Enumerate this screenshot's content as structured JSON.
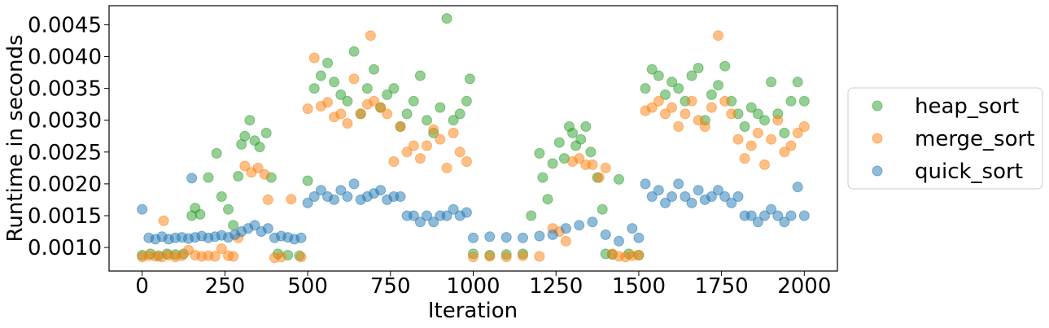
{
  "chart_data": {
    "type": "scatter",
    "xlabel": "Iteration",
    "ylabel": "Runtime in seconds",
    "xlim": [
      -100,
      2100
    ],
    "ylim": [
      0.00063,
      0.0048
    ],
    "xticks": [
      0,
      250,
      500,
      750,
      1000,
      1250,
      1500,
      1750,
      2000
    ],
    "xtick_labels": [
      "0",
      "250",
      "500",
      "750",
      "1000",
      "1250",
      "1500",
      "1750",
      "2000"
    ],
    "yticks": [
      0.001,
      0.0015,
      0.002,
      0.0025,
      0.003,
      0.0035,
      0.004,
      0.0045
    ],
    "ytick_labels": [
      "0.0010",
      "0.0015",
      "0.0020",
      "0.0025",
      "0.0030",
      "0.0035",
      "0.0040",
      "0.0045"
    ],
    "grid": false,
    "legend_position": "right, outside plot",
    "point_alpha": 0.5,
    "series": [
      {
        "name": "heap_sort",
        "color": "#2ca02c",
        "x": [
          0,
          25,
          50,
          75,
          100,
          125,
          150,
          160,
          175,
          200,
          225,
          240,
          260,
          275,
          290,
          300,
          310,
          325,
          340,
          355,
          375,
          390,
          410,
          440,
          475,
          500,
          520,
          540,
          560,
          580,
          600,
          620,
          640,
          660,
          680,
          700,
          720,
          740,
          760,
          780,
          800,
          820,
          840,
          860,
          880,
          900,
          920,
          940,
          960,
          980,
          990,
          1000,
          1050,
          1100,
          1150,
          1175,
          1200,
          1210,
          1225,
          1240,
          1260,
          1275,
          1290,
          1300,
          1310,
          1325,
          1340,
          1355,
          1375,
          1390,
          1400,
          1420,
          1440,
          1470,
          1500,
          1520,
          1540,
          1560,
          1580,
          1600,
          1620,
          1640,
          1660,
          1680,
          1700,
          1720,
          1740,
          1760,
          1780,
          1800,
          1820,
          1840,
          1860,
          1880,
          1900,
          1920,
          1940,
          1960,
          1980,
          2000
        ],
        "y": [
          0.00088,
          0.0009,
          0.00087,
          0.0009,
          0.00089,
          0.0009,
          0.0015,
          0.00162,
          0.00152,
          0.0021,
          0.00248,
          0.0018,
          0.0016,
          0.00135,
          0.00212,
          0.00262,
          0.00275,
          0.003,
          0.00268,
          0.00258,
          0.0028,
          0.0021,
          0.0009,
          0.00088,
          0.00087,
          0.00205,
          0.0035,
          0.0037,
          0.0039,
          0.0036,
          0.0034,
          0.0033,
          0.00408,
          0.0031,
          0.0035,
          0.0038,
          0.0032,
          0.0034,
          0.0035,
          0.0029,
          0.0031,
          0.0033,
          0.0037,
          0.003,
          0.0028,
          0.0032,
          0.0046,
          0.003,
          0.0031,
          0.0033,
          0.00365,
          0.0009,
          0.00088,
          0.00089,
          0.0009,
          0.0015,
          0.00248,
          0.0021,
          0.00176,
          0.00232,
          0.00265,
          0.0024,
          0.0029,
          0.0028,
          0.0026,
          0.0027,
          0.0029,
          0.0025,
          0.0021,
          0.0016,
          0.0009,
          0.00089,
          0.00207,
          0.0009,
          0.00088,
          0.0035,
          0.0038,
          0.0037,
          0.0034,
          0.0036,
          0.0035,
          0.0033,
          0.0037,
          0.00382,
          0.003,
          0.0034,
          0.00355,
          0.00385,
          0.0033,
          0.0031,
          0.0029,
          0.0032,
          0.0031,
          0.003,
          0.0036,
          0.0031,
          0.0028,
          0.0033,
          0.0036,
          0.0033
        ]
      },
      {
        "name": "merge_sort",
        "color": "#ff7f0e",
        "x": [
          0,
          20,
          40,
          60,
          65,
          80,
          100,
          120,
          140,
          160,
          180,
          200,
          220,
          240,
          260,
          275,
          290,
          310,
          330,
          350,
          370,
          380,
          400,
          420,
          450,
          480,
          500,
          520,
          540,
          560,
          580,
          600,
          620,
          640,
          660,
          680,
          690,
          700,
          720,
          740,
          760,
          780,
          800,
          820,
          840,
          860,
          880,
          900,
          920,
          940,
          960,
          980,
          1000,
          1050,
          1100,
          1150,
          1200,
          1240,
          1260,
          1280,
          1300,
          1320,
          1340,
          1360,
          1380,
          1400,
          1420,
          1440,
          1460,
          1480,
          1500,
          1520,
          1540,
          1560,
          1580,
          1600,
          1620,
          1640,
          1660,
          1680,
          1700,
          1720,
          1740,
          1760,
          1780,
          1800,
          1820,
          1840,
          1860,
          1880,
          1900,
          1920,
          1940,
          1960,
          1980,
          2000
        ],
        "y": [
          0.00085,
          0.00087,
          0.00086,
          0.00085,
          0.00142,
          0.00088,
          0.00085,
          0.00087,
          0.00096,
          0.00088,
          0.00086,
          0.00087,
          0.00086,
          0.00098,
          0.00087,
          0.00086,
          0.00115,
          0.00228,
          0.00218,
          0.00225,
          0.00215,
          0.00175,
          0.00084,
          0.00085,
          0.00176,
          0.00085,
          0.00318,
          0.00398,
          0.00322,
          0.00328,
          0.00305,
          0.0031,
          0.00295,
          0.00365,
          0.0031,
          0.00325,
          0.00433,
          0.0033,
          0.0032,
          0.0031,
          0.00235,
          0.0029,
          0.0025,
          0.0026,
          0.0024,
          0.0026,
          0.00285,
          0.0027,
          0.00225,
          0.0028,
          0.0025,
          0.00235,
          0.00085,
          0.00086,
          0.00085,
          0.00087,
          0.00086,
          0.0013,
          0.00125,
          0.0011,
          0.00235,
          0.0024,
          0.0023,
          0.0023,
          0.0021,
          0.00225,
          0.0009,
          0.00086,
          0.00085,
          0.00087,
          0.00088,
          0.00315,
          0.0032,
          0.0033,
          0.0031,
          0.0032,
          0.0029,
          0.0031,
          0.0033,
          0.003,
          0.0029,
          0.0032,
          0.00433,
          0.0033,
          0.0031,
          0.0027,
          0.0024,
          0.0026,
          0.0028,
          0.0023,
          0.0027,
          0.003,
          0.0025,
          0.0026,
          0.0028,
          0.0029
        ]
      },
      {
        "name": "quick_sort",
        "color": "#1f77b4",
        "x": [
          0,
          20,
          40,
          60,
          80,
          100,
          120,
          140,
          150,
          160,
          180,
          200,
          220,
          240,
          260,
          280,
          300,
          320,
          340,
          360,
          380,
          400,
          420,
          440,
          460,
          480,
          500,
          520,
          540,
          560,
          580,
          600,
          620,
          640,
          660,
          680,
          700,
          720,
          740,
          760,
          780,
          800,
          820,
          840,
          860,
          880,
          900,
          920,
          940,
          960,
          980,
          1000,
          1050,
          1100,
          1150,
          1200,
          1240,
          1280,
          1320,
          1360,
          1400,
          1440,
          1480,
          1500,
          1520,
          1540,
          1560,
          1580,
          1600,
          1620,
          1640,
          1660,
          1680,
          1700,
          1720,
          1740,
          1760,
          1780,
          1800,
          1820,
          1840,
          1860,
          1880,
          1900,
          1920,
          1940,
          1960,
          1980,
          2000
        ],
        "y": [
          0.0016,
          0.00115,
          0.00113,
          0.00117,
          0.00113,
          0.00115,
          0.00116,
          0.00114,
          0.00209,
          0.00116,
          0.00118,
          0.00115,
          0.00117,
          0.00119,
          0.00116,
          0.0012,
          0.00125,
          0.0013,
          0.00135,
          0.00125,
          0.0013,
          0.00115,
          0.00118,
          0.00116,
          0.00113,
          0.00115,
          0.0017,
          0.0018,
          0.0019,
          0.0018,
          0.00175,
          0.0019,
          0.0018,
          0.002,
          0.00175,
          0.0018,
          0.00185,
          0.0019,
          0.00175,
          0.0018,
          0.0018,
          0.0015,
          0.0015,
          0.0014,
          0.0015,
          0.0014,
          0.0015,
          0.0015,
          0.0016,
          0.0015,
          0.00155,
          0.00115,
          0.00117,
          0.00116,
          0.00115,
          0.00118,
          0.0012,
          0.0013,
          0.00135,
          0.0014,
          0.0012,
          0.0011,
          0.0013,
          0.00115,
          0.002,
          0.0018,
          0.0019,
          0.0017,
          0.0018,
          0.002,
          0.0018,
          0.0017,
          0.0019,
          0.00175,
          0.0018,
          0.0019,
          0.0018,
          0.0017,
          0.0018,
          0.0015,
          0.0015,
          0.0014,
          0.0015,
          0.0016,
          0.0015,
          0.0014,
          0.0015,
          0.00195,
          0.0015
        ]
      }
    ]
  }
}
